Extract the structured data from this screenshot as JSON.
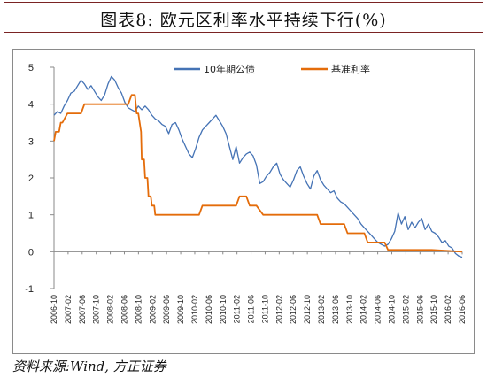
{
  "title": "图表8: 欧元区利率水平持续下行(%)",
  "source": "资料来源:Wind, 方正证券",
  "colors": {
    "rule": "#7a2323",
    "bond": "#4573b5",
    "policy": "#e46c0a",
    "axis": "#8a8a8a"
  },
  "chart_data": {
    "type": "line",
    "title": "",
    "xlabel": "",
    "ylabel": "",
    "ylim": [
      -1,
      5
    ],
    "yticks": [
      "5",
      "4",
      "3",
      "2",
      "1",
      "0",
      "-1"
    ],
    "xlim": [
      0,
      121
    ],
    "x_tick_labels": [
      "2006-10",
      "2007-02",
      "2007-06",
      "2007-10",
      "2008-02",
      "2008-06",
      "2008-10",
      "2009-02",
      "2009-06",
      "2009-10",
      "2010-02",
      "2010-06",
      "2010-10",
      "2011-02",
      "2011-06",
      "2011-10",
      "2012-02",
      "2012-06",
      "2012-10",
      "2013-02",
      "2013-06",
      "2013-10",
      "2014-02",
      "2014-06",
      "2014-10",
      "2015-02",
      "2015-06",
      "2015-10",
      "2016-02",
      "2016-06"
    ],
    "legend_position": "top-center",
    "grid": false,
    "series": [
      {
        "name": "10年期公债",
        "x": [
          0,
          1,
          2,
          3,
          4,
          5,
          6,
          7,
          8,
          9,
          10,
          11,
          12,
          13,
          14,
          15,
          16,
          17,
          18,
          19,
          20,
          21,
          22,
          23,
          24,
          25,
          26,
          27,
          28,
          29,
          30,
          31,
          32,
          33,
          34,
          35,
          36,
          37,
          38,
          39,
          40,
          41,
          42,
          43,
          44,
          45,
          46,
          47,
          48,
          49,
          50,
          51,
          52,
          53,
          54,
          55,
          56,
          57,
          58,
          59,
          60,
          61,
          62,
          63,
          64,
          65,
          66,
          67,
          68,
          69,
          70,
          71,
          72,
          73,
          74,
          75,
          76,
          77,
          78,
          79,
          80,
          81,
          82,
          83,
          84,
          85,
          86,
          87,
          88,
          89,
          90,
          91,
          92,
          93,
          94,
          95,
          96,
          97,
          98,
          99,
          100,
          101,
          102,
          103,
          104,
          105,
          106,
          107,
          108,
          109,
          110,
          111,
          112,
          113,
          114,
          115,
          116,
          117,
          118,
          119,
          120,
          121
        ],
        "values": [
          3.7,
          3.8,
          3.75,
          3.95,
          4.1,
          4.3,
          4.35,
          4.5,
          4.65,
          4.55,
          4.4,
          4.5,
          4.35,
          4.2,
          4.1,
          4.25,
          4.55,
          4.75,
          4.65,
          4.45,
          4.3,
          4.05,
          3.9,
          3.85,
          3.8,
          3.95,
          3.85,
          3.95,
          3.85,
          3.7,
          3.6,
          3.55,
          3.45,
          3.4,
          3.2,
          3.45,
          3.5,
          3.3,
          3.05,
          2.85,
          2.65,
          2.55,
          2.8,
          3.1,
          3.3,
          3.4,
          3.5,
          3.6,
          3.7,
          3.55,
          3.4,
          3.2,
          2.85,
          2.5,
          2.85,
          2.4,
          2.55,
          2.65,
          2.7,
          2.6,
          2.35,
          1.85,
          1.9,
          2.05,
          2.15,
          2.3,
          2.4,
          2.1,
          1.95,
          1.85,
          1.75,
          1.95,
          2.2,
          2.3,
          2.05,
          1.85,
          1.7,
          2.05,
          2.2,
          1.95,
          1.8,
          1.7,
          1.6,
          1.65,
          1.45,
          1.35,
          1.3,
          1.2,
          1.1,
          1.0,
          0.9,
          0.75,
          0.65,
          0.55,
          0.45,
          0.35,
          0.25,
          0.2,
          0.15,
          0.2,
          0.35,
          0.55,
          1.05,
          0.75,
          0.95,
          0.6,
          0.8,
          0.65,
          0.8,
          0.9,
          0.6,
          0.75,
          0.55,
          0.5,
          0.4,
          0.25,
          0.3,
          0.15,
          0.1,
          -0.05,
          -0.12,
          -0.15
        ]
      },
      {
        "name": "基准利率",
        "x": [
          0,
          0.5,
          1.5,
          2,
          2.5,
          4,
          5,
          6,
          8,
          9,
          10,
          22,
          23,
          24,
          24.5,
          25,
          25.8,
          26,
          26.7,
          27,
          27.7,
          28,
          28.7,
          29,
          29.7,
          30,
          43,
          44,
          54,
          55,
          57,
          58,
          60,
          62,
          78,
          79,
          86,
          87,
          92,
          93,
          98,
          99,
          112,
          121
        ],
        "values": [
          3.0,
          3.25,
          3.25,
          3.5,
          3.5,
          3.75,
          3.75,
          3.75,
          3.75,
          4.0,
          4.0,
          4.0,
          4.25,
          4.25,
          3.75,
          3.75,
          3.25,
          2.5,
          2.5,
          2.0,
          2.0,
          1.5,
          1.5,
          1.25,
          1.25,
          1.0,
          1.0,
          1.25,
          1.25,
          1.5,
          1.5,
          1.25,
          1.25,
          1.0,
          1.0,
          0.75,
          0.75,
          0.5,
          0.5,
          0.25,
          0.25,
          0.05,
          0.05,
          0.0
        ]
      }
    ]
  }
}
